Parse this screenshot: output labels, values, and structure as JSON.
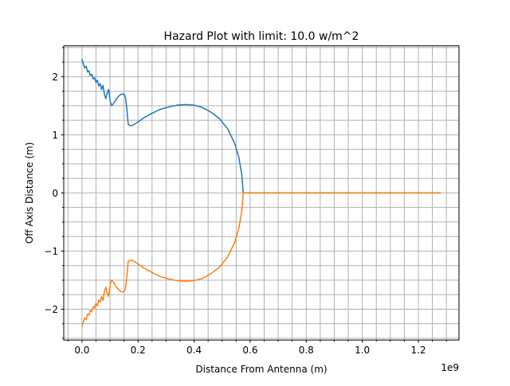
{
  "chart_data": {
    "type": "line",
    "title": "Hazard Plot with limit: 10.0 w/m^2",
    "xlabel": "Distance From Antenna (m)",
    "ylabel": "Off Axis Distance (m)",
    "x_offset_label": "1e9",
    "xlim": [
      -0.065,
      1.345
    ],
    "ylim": [
      -2.53,
      2.53
    ],
    "x_ticks": [
      0.0,
      0.2,
      0.4,
      0.6,
      0.8,
      1.0,
      1.2
    ],
    "x_tick_labels": [
      "0.0",
      "0.2",
      "0.4",
      "0.6",
      "0.8",
      "1.0",
      "1.2"
    ],
    "y_ticks": [
      -2,
      -1,
      0,
      1,
      2
    ],
    "y_tick_labels": [
      "−2",
      "−1",
      "0",
      "1",
      "2"
    ],
    "x_minor_step": 0.05,
    "y_minor_step": 0.25,
    "grid": true,
    "legend": "none",
    "series": [
      {
        "color": "#1f77b4",
        "points": [
          [
            0.0,
            2.3
          ],
          [
            0.005,
            2.22
          ],
          [
            0.01,
            2.15
          ],
          [
            0.015,
            2.18
          ],
          [
            0.02,
            2.08
          ],
          [
            0.025,
            2.1
          ],
          [
            0.03,
            2.02
          ],
          [
            0.035,
            2.04
          ],
          [
            0.04,
            1.96
          ],
          [
            0.045,
            1.98
          ],
          [
            0.05,
            1.9
          ],
          [
            0.055,
            1.94
          ],
          [
            0.06,
            1.84
          ],
          [
            0.065,
            1.88
          ],
          [
            0.07,
            1.78
          ],
          [
            0.075,
            1.85
          ],
          [
            0.08,
            1.7
          ],
          [
            0.085,
            1.62
          ],
          [
            0.09,
            1.72
          ],
          [
            0.095,
            1.78
          ],
          [
            0.1,
            1.6
          ],
          [
            0.105,
            1.5
          ],
          [
            0.11,
            1.52
          ],
          [
            0.12,
            1.6
          ],
          [
            0.13,
            1.66
          ],
          [
            0.14,
            1.7
          ],
          [
            0.15,
            1.7
          ],
          [
            0.155,
            1.65
          ],
          [
            0.16,
            1.45
          ],
          [
            0.165,
            1.18
          ],
          [
            0.17,
            1.16
          ],
          [
            0.18,
            1.16
          ],
          [
            0.2,
            1.22
          ],
          [
            0.22,
            1.29
          ],
          [
            0.25,
            1.37
          ],
          [
            0.28,
            1.44
          ],
          [
            0.31,
            1.48
          ],
          [
            0.34,
            1.51
          ],
          [
            0.37,
            1.52
          ],
          [
            0.4,
            1.51
          ],
          [
            0.43,
            1.47
          ],
          [
            0.46,
            1.39
          ],
          [
            0.49,
            1.28
          ],
          [
            0.52,
            1.1
          ],
          [
            0.545,
            0.85
          ],
          [
            0.56,
            0.6
          ],
          [
            0.57,
            0.32
          ],
          [
            0.573,
            0.15
          ],
          [
            0.575,
            0.0
          ],
          [
            0.6,
            0.0
          ],
          [
            0.8,
            0.0
          ],
          [
            1.0,
            0.0
          ],
          [
            1.2,
            0.0
          ],
          [
            1.28,
            0.0
          ]
        ]
      },
      {
        "color": "#ff7f0e",
        "points": [
          [
            0.0,
            -2.3
          ],
          [
            0.005,
            -2.22
          ],
          [
            0.01,
            -2.15
          ],
          [
            0.015,
            -2.18
          ],
          [
            0.02,
            -2.08
          ],
          [
            0.025,
            -2.1
          ],
          [
            0.03,
            -2.02
          ],
          [
            0.035,
            -2.04
          ],
          [
            0.04,
            -1.96
          ],
          [
            0.045,
            -1.98
          ],
          [
            0.05,
            -1.9
          ],
          [
            0.055,
            -1.94
          ],
          [
            0.06,
            -1.84
          ],
          [
            0.065,
            -1.88
          ],
          [
            0.07,
            -1.78
          ],
          [
            0.075,
            -1.85
          ],
          [
            0.08,
            -1.7
          ],
          [
            0.085,
            -1.62
          ],
          [
            0.09,
            -1.72
          ],
          [
            0.095,
            -1.78
          ],
          [
            0.1,
            -1.6
          ],
          [
            0.105,
            -1.5
          ],
          [
            0.11,
            -1.52
          ],
          [
            0.12,
            -1.6
          ],
          [
            0.13,
            -1.66
          ],
          [
            0.14,
            -1.7
          ],
          [
            0.15,
            -1.7
          ],
          [
            0.155,
            -1.65
          ],
          [
            0.16,
            -1.45
          ],
          [
            0.165,
            -1.18
          ],
          [
            0.17,
            -1.16
          ],
          [
            0.18,
            -1.16
          ],
          [
            0.2,
            -1.22
          ],
          [
            0.22,
            -1.29
          ],
          [
            0.25,
            -1.37
          ],
          [
            0.28,
            -1.44
          ],
          [
            0.31,
            -1.48
          ],
          [
            0.34,
            -1.51
          ],
          [
            0.37,
            -1.52
          ],
          [
            0.4,
            -1.51
          ],
          [
            0.43,
            -1.47
          ],
          [
            0.46,
            -1.39
          ],
          [
            0.49,
            -1.28
          ],
          [
            0.52,
            -1.1
          ],
          [
            0.545,
            -0.85
          ],
          [
            0.56,
            -0.6
          ],
          [
            0.57,
            -0.32
          ],
          [
            0.573,
            -0.15
          ],
          [
            0.575,
            0.0
          ],
          [
            0.6,
            0.0
          ],
          [
            0.8,
            0.0
          ],
          [
            1.0,
            0.0
          ],
          [
            1.2,
            0.0
          ],
          [
            1.28,
            0.0
          ]
        ]
      }
    ]
  }
}
